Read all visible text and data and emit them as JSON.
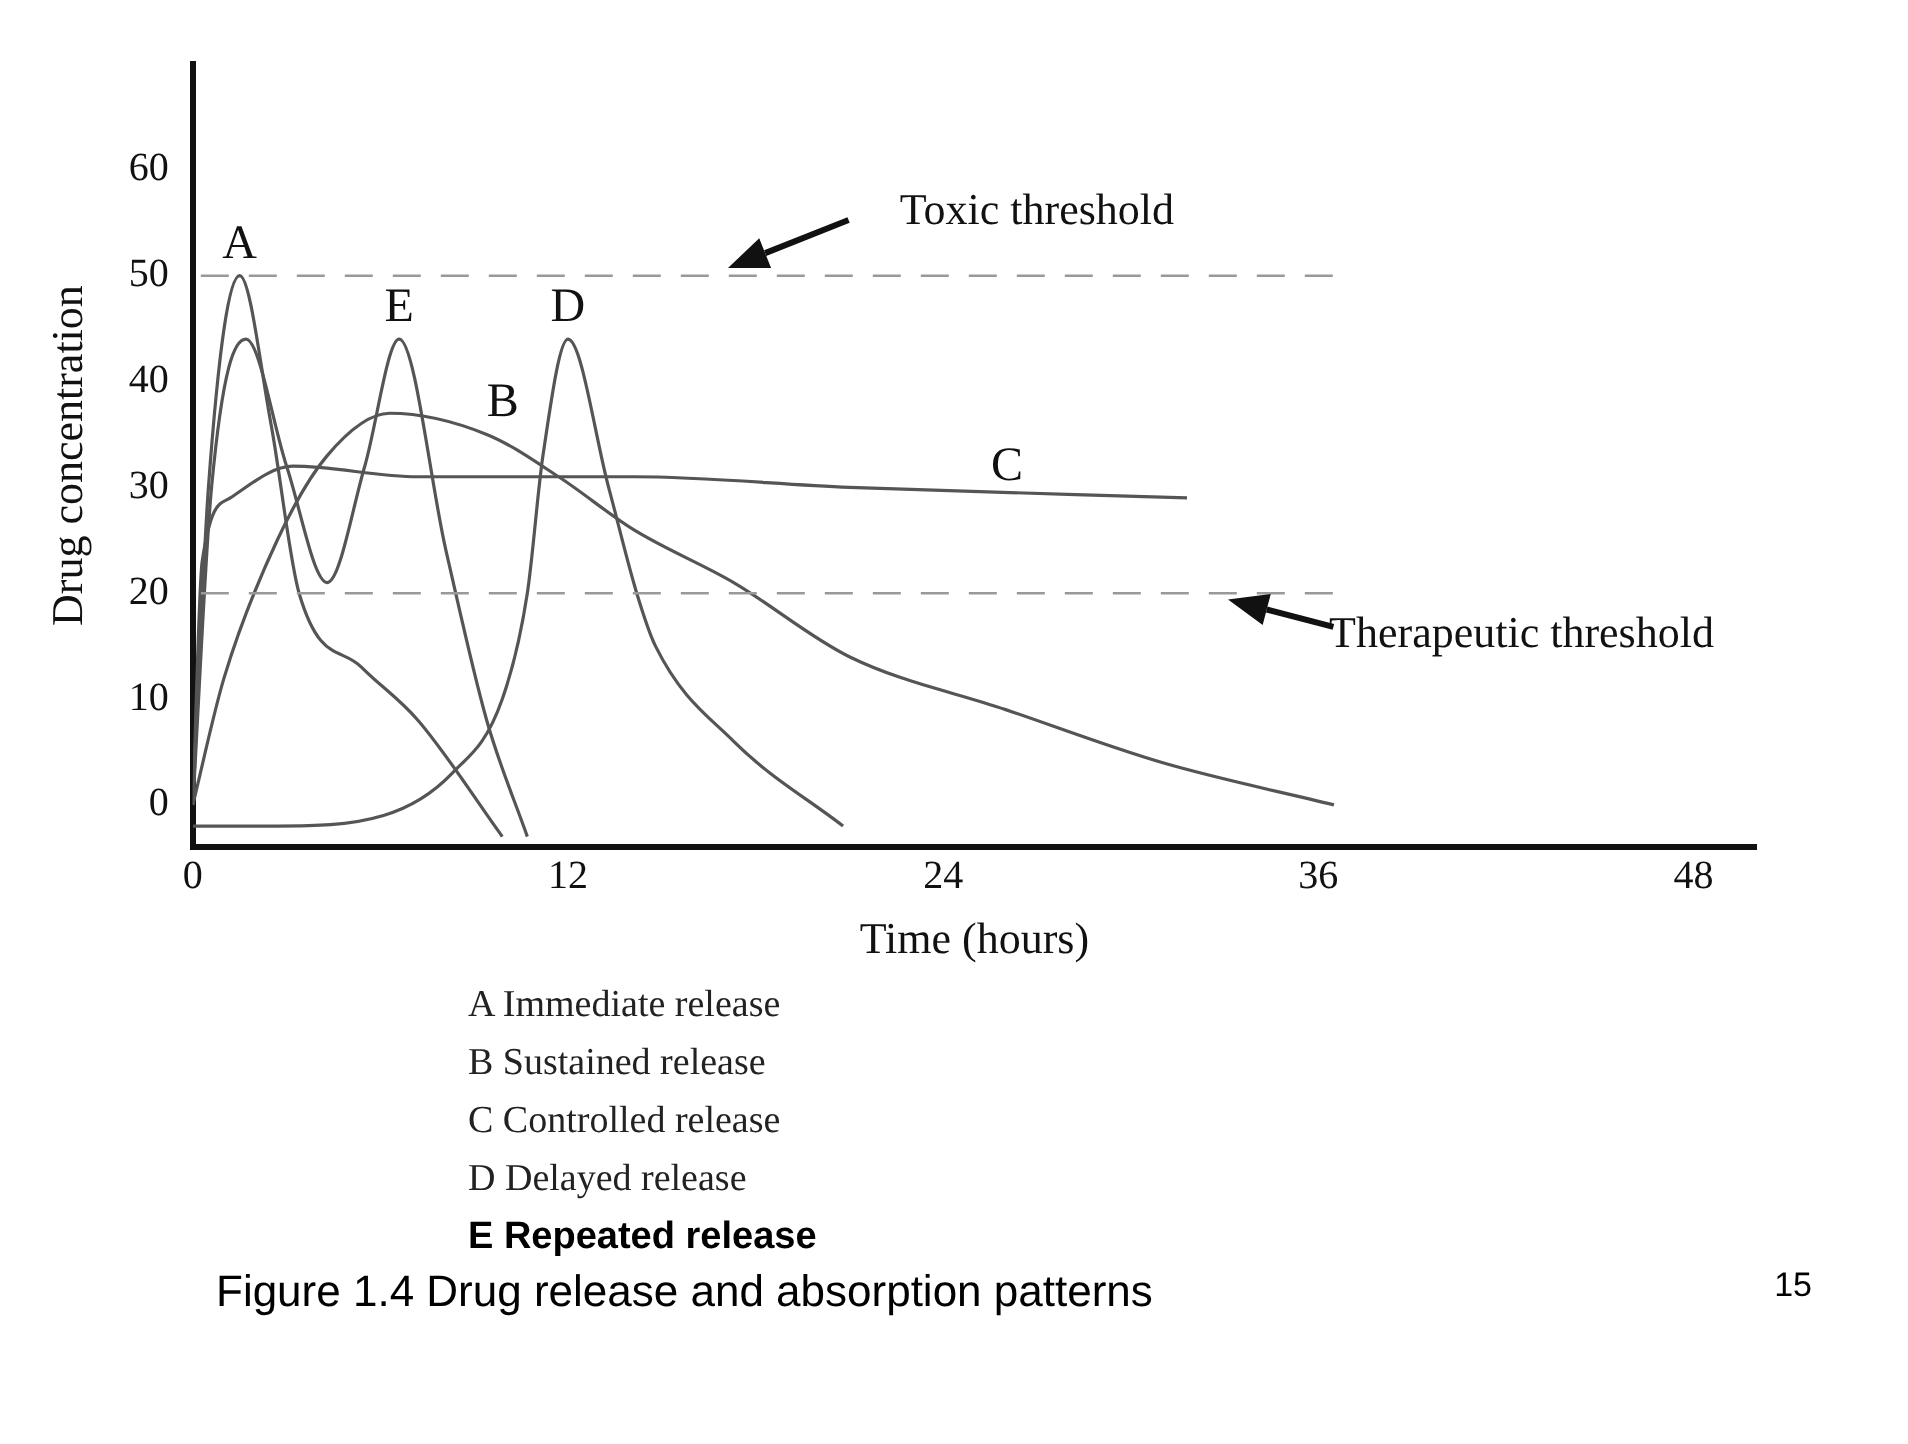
{
  "chart_data": {
    "type": "line",
    "xlabel": "Time (hours)",
    "ylabel": "Drug concentration",
    "xlim": [
      0,
      50
    ],
    "xticks": [
      0,
      12,
      24,
      36,
      48
    ],
    "ylim": [
      -4,
      70
    ],
    "yticks": [
      0,
      10,
      20,
      30,
      40,
      50,
      60
    ],
    "grid": false,
    "legend": false,
    "marker": "none",
    "line_style": "solid",
    "series": [
      {
        "name": "A",
        "color": "#555555",
        "x": [
          0,
          0.5,
          1.5,
          2.5,
          3.4,
          5.4,
          7.2,
          9.9
        ],
        "values": [
          0,
          30,
          50,
          36,
          20,
          13,
          8,
          -3
        ]
      },
      {
        "name": "B",
        "color": "#555555",
        "x": [
          0,
          1,
          2.7,
          4.3,
          6.3,
          9.4,
          11.7,
          14.1,
          17.3,
          21,
          26,
          31,
          36.5
        ],
        "values": [
          0,
          12,
          25,
          33,
          37,
          35,
          31,
          26,
          21,
          14,
          9,
          4,
          0
        ]
      },
      {
        "name": "C",
        "color": "#555555",
        "x": [
          0,
          0.3,
          1.2,
          3.2,
          7.2,
          14.1,
          21,
          31.8
        ],
        "values": [
          0,
          23,
          29,
          32,
          31,
          31,
          30,
          29
        ]
      },
      {
        "name": "D",
        "color": "#555555",
        "x": [
          0,
          2.7,
          6.1,
          8.3,
          9.9,
          10.7,
          11.2,
          12,
          13.3,
          14.2,
          14.8,
          17.3,
          20.8
        ],
        "values": [
          -2,
          -2,
          -1,
          3,
          10,
          20,
          33,
          44,
          30,
          20,
          15,
          6,
          -2
        ]
      },
      {
        "name": "E",
        "color": "#555555",
        "x": [
          0,
          0.6,
          1.7,
          3,
          4.3,
          5.5,
          6.6,
          8.1,
          9.4,
          10.7
        ],
        "values": [
          0,
          30,
          44,
          32,
          21,
          32,
          44,
          24,
          8,
          -3
        ]
      }
    ],
    "ref_lines": [
      {
        "axis": "y",
        "value": 50,
        "label": "Toxic threshold",
        "color": "#999999",
        "line_style": "dashed"
      },
      {
        "axis": "y",
        "value": 20,
        "label": "Therapeutic threshold",
        "color": "#999999",
        "line_style": "dashed"
      }
    ],
    "annotations": [
      "A Immediate release",
      "B Sustained release",
      "C Controlled release",
      "D Delayed release",
      "E Repeated release",
      "Figure 1.4    Drug release and absorption patterns",
      "15"
    ]
  }
}
